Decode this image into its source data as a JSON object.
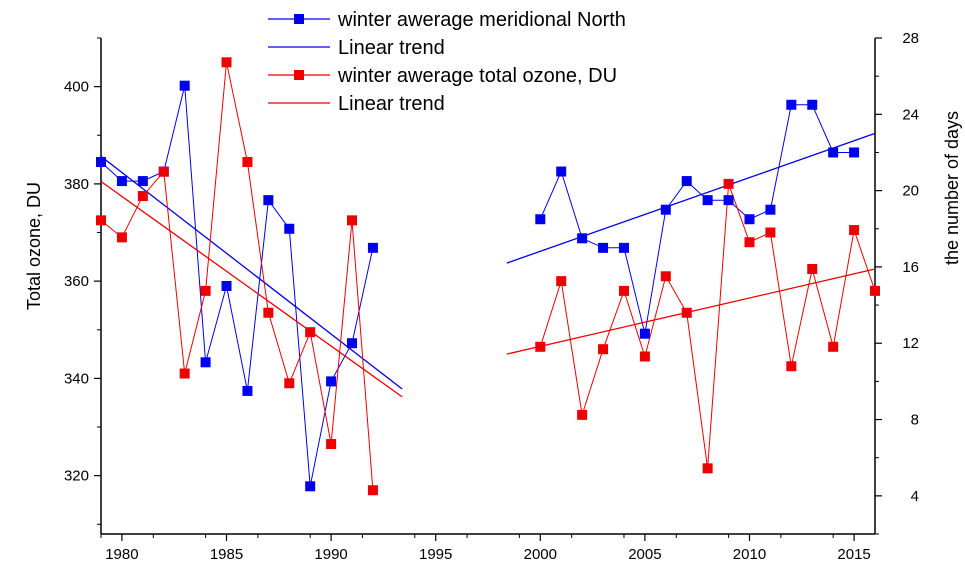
{
  "chart_data": {
    "type": "line",
    "title": "",
    "xlabel": "",
    "ylabel_left": "Total ozone, DU",
    "ylabel_right": "the number of days",
    "xlim": [
      1979,
      2016
    ],
    "ylim_left": [
      308,
      410
    ],
    "ylim_right": [
      2,
      28
    ],
    "xticks": [
      1980,
      1985,
      1990,
      1995,
      2000,
      2005,
      2010,
      2015
    ],
    "yticks_left": [
      320,
      340,
      360,
      380,
      400
    ],
    "yticks_right": [
      4,
      8,
      12,
      16,
      20,
      24,
      28
    ],
    "grid": false,
    "legend_position": "top-center",
    "series": [
      {
        "name": "winter awerage  meridional North",
        "axis": "right",
        "color": "#0000ee",
        "marker": "square",
        "segments": [
          [
            [
              1979,
              21.5
            ],
            [
              1980,
              20.5
            ],
            [
              1981,
              20.5
            ],
            [
              1982,
              21.0
            ],
            [
              1983,
              25.5
            ],
            [
              1984,
              11.0
            ],
            [
              1985,
              15.0
            ],
            [
              1986,
              9.5
            ],
            [
              1987,
              19.5
            ],
            [
              1988,
              18.0
            ],
            [
              1989,
              4.5
            ],
            [
              1990,
              10.0
            ],
            [
              1991,
              12.0
            ],
            [
              1992,
              17.0
            ]
          ],
          [
            [
              2000,
              18.5
            ],
            [
              2001,
              21.0
            ],
            [
              2002,
              17.5
            ],
            [
              2003,
              17.0
            ],
            [
              2004,
              17.0
            ],
            [
              2005,
              12.5
            ],
            [
              2006,
              19.0
            ],
            [
              2007,
              20.5
            ],
            [
              2008,
              19.5
            ],
            [
              2009,
              19.5
            ],
            [
              2010,
              18.5
            ],
            [
              2011,
              19.0
            ],
            [
              2012,
              24.5
            ],
            [
              2013,
              24.5
            ],
            [
              2014,
              22.0
            ],
            [
              2015,
              22.0
            ]
          ]
        ]
      },
      {
        "name": "Linear trend",
        "axis": "right",
        "color": "#0000ee",
        "marker": "none",
        "segments": [
          [
            [
              1979,
              21.8
            ],
            [
              1993.4,
              9.6
            ]
          ],
          [
            [
              1998.4,
              16.2
            ],
            [
              2016,
              23.0
            ]
          ]
        ]
      },
      {
        "name": "winter awerage total ozone, DU",
        "axis": "left",
        "color": "#ee0000",
        "marker": "square",
        "segments": [
          [
            [
              1979,
              372.5
            ],
            [
              1980,
              369
            ],
            [
              1981,
              377.5
            ],
            [
              1982,
              382.5
            ],
            [
              1983,
              341
            ],
            [
              1984,
              358
            ],
            [
              1985,
              405
            ],
            [
              1986,
              384.5
            ],
            [
              1987,
              353.5
            ],
            [
              1988,
              339
            ],
            [
              1989,
              349.5
            ],
            [
              1990,
              326.5
            ],
            [
              1991,
              372.5
            ],
            [
              1992,
              317
            ]
          ],
          [
            [
              2000,
              346.5
            ],
            [
              2001,
              360
            ],
            [
              2002,
              332.5
            ],
            [
              2003,
              346
            ],
            [
              2004,
              358
            ],
            [
              2005,
              344.5
            ],
            [
              2006,
              361
            ],
            [
              2007,
              353.5
            ],
            [
              2008,
              321.5
            ],
            [
              2009,
              380
            ],
            [
              2010,
              368
            ],
            [
              2011,
              370
            ],
            [
              2012,
              342.5
            ],
            [
              2013,
              362.5
            ],
            [
              2014,
              346.5
            ],
            [
              2015,
              370.5
            ],
            [
              2016,
              358
            ]
          ]
        ]
      },
      {
        "name": "Linear trend",
        "axis": "left",
        "color": "#ee0000",
        "marker": "none",
        "segments": [
          [
            [
              1979,
              380.5
            ],
            [
              1993.4,
              336.2
            ]
          ],
          [
            [
              1998.4,
              345
            ],
            [
              2016,
              362.5
            ]
          ]
        ]
      }
    ]
  }
}
